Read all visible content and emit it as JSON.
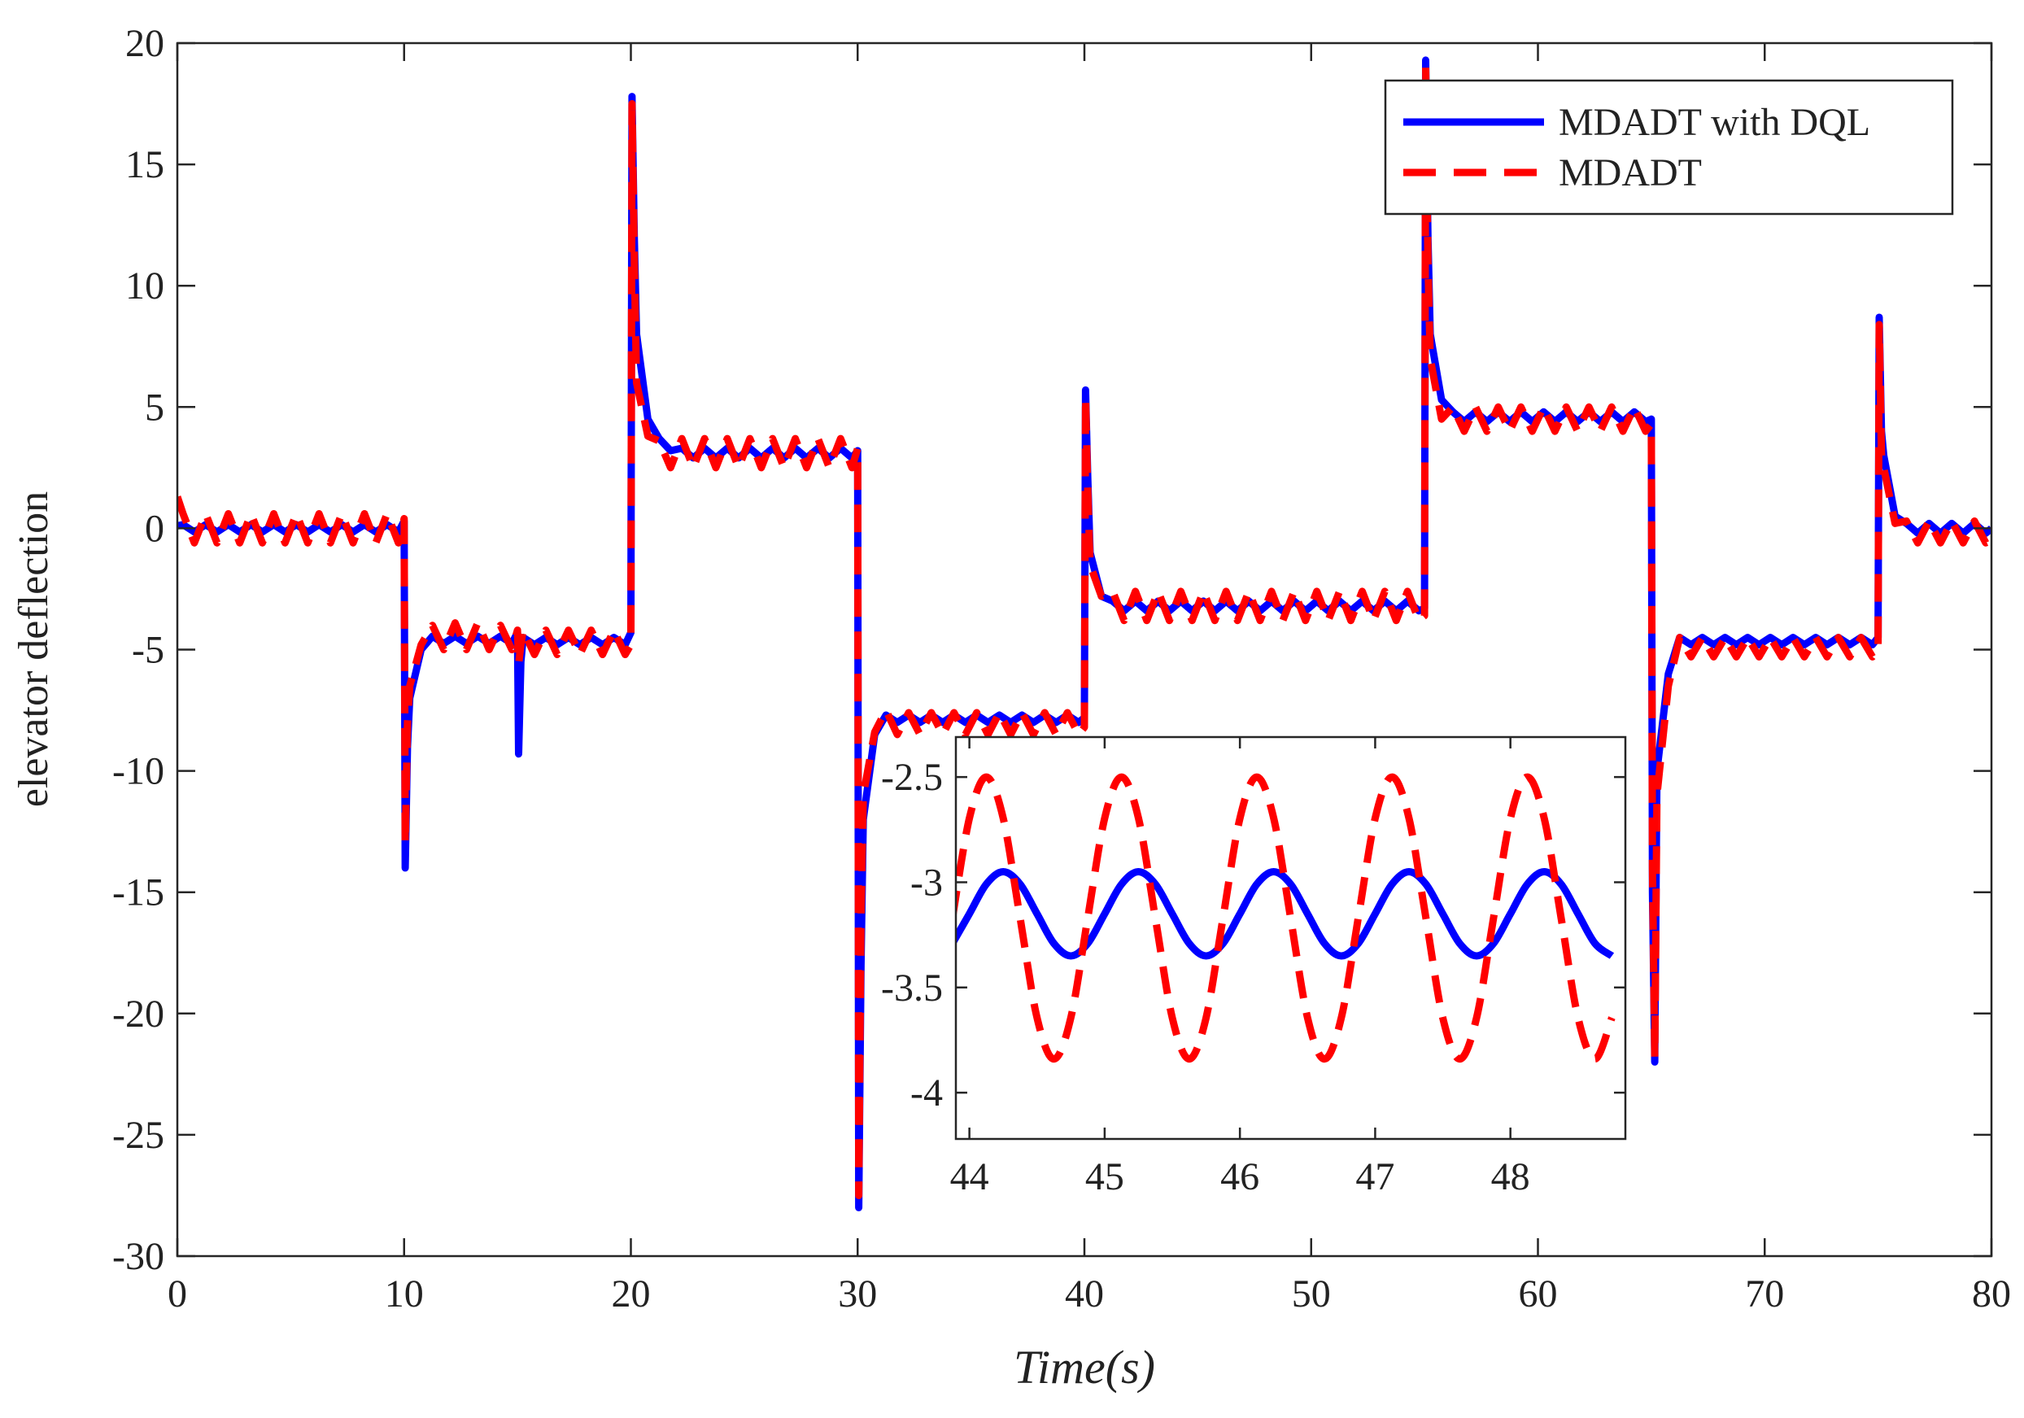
{
  "chart_data": [
    {
      "type": "line",
      "xlabel": "Time(s)",
      "ylabel": "elevator deflection",
      "xlim": [
        0,
        80
      ],
      "ylim": [
        -30,
        20
      ],
      "xticks": [
        0,
        10,
        20,
        30,
        40,
        50,
        60,
        70,
        80
      ],
      "yticks": [
        -30,
        -25,
        -20,
        -15,
        -10,
        -5,
        0,
        5,
        10,
        15,
        20
      ],
      "legend": "upper right",
      "x": [
        0,
        0.25,
        0.75,
        1.25,
        1.75,
        2.25,
        2.75,
        3.25,
        3.75,
        4.25,
        4.75,
        5.25,
        5.75,
        6.25,
        6.75,
        7.25,
        7.75,
        8.25,
        8.75,
        9.25,
        9.75,
        10,
        10.05,
        10.15,
        10.25,
        10.75,
        11.25,
        11.75,
        12.25,
        12.75,
        13.25,
        13.75,
        14.25,
        14.75,
        15,
        15.05,
        15.15,
        15.25,
        15.75,
        16.25,
        16.75,
        17.25,
        17.75,
        18.25,
        18.75,
        19.25,
        19.75,
        20,
        20.05,
        20.15,
        20.25,
        20.75,
        21.25,
        21.75,
        22.25,
        22.75,
        23.25,
        23.75,
        24.25,
        24.75,
        25.25,
        25.75,
        26.25,
        26.75,
        27.25,
        27.75,
        28.25,
        28.75,
        29.25,
        29.75,
        30,
        30.05,
        30.15,
        30.25,
        30.75,
        31.25,
        31.75,
        32.25,
        32.75,
        33.25,
        33.75,
        34.25,
        34.75,
        35.25,
        35.75,
        36.25,
        36.75,
        37.25,
        37.75,
        38.25,
        38.75,
        39.25,
        39.75,
        40,
        40.05,
        40.15,
        40.25,
        40.75,
        41.25,
        41.75,
        42.25,
        42.75,
        43.25,
        43.75,
        44.25,
        44.75,
        45.25,
        45.75,
        46.25,
        46.75,
        47.25,
        47.75,
        48.25,
        48.75,
        49.25,
        49.75,
        50.25,
        50.75,
        51.25,
        51.75,
        52.25,
        52.75,
        53.25,
        53.75,
        54.25,
        54.75,
        55,
        55.05,
        55.15,
        55.25,
        55.75,
        56.25,
        56.75,
        57.25,
        57.75,
        58.25,
        58.75,
        59.25,
        59.75,
        60.25,
        60.75,
        61.25,
        61.75,
        62.25,
        62.75,
        63.25,
        63.75,
        64.25,
        64.75,
        65,
        65.05,
        65.15,
        65.25,
        65.75,
        66.25,
        66.75,
        67.25,
        67.75,
        68.25,
        68.75,
        69.25,
        69.75,
        70.25,
        70.75,
        71.25,
        71.75,
        72.25,
        72.75,
        73.25,
        73.75,
        74.25,
        74.75,
        75,
        75.05,
        75.15,
        75.25,
        75.75,
        76.25,
        76.75,
        77.25,
        77.75,
        78.25,
        78.75,
        79.25,
        79.75,
        80
      ],
      "series": [
        {
          "name": "MDADT with DQL",
          "color": "#0000ff",
          "style": "solid",
          "values": [
            0.1,
            0.15,
            -0.15,
            0.15,
            -0.15,
            0.15,
            -0.15,
            0.15,
            -0.15,
            0.15,
            -0.15,
            0.15,
            -0.15,
            0.15,
            -0.15,
            0.15,
            -0.15,
            0.15,
            -0.15,
            0.15,
            -0.15,
            0.3,
            -14,
            -9,
            -7,
            -5,
            -4.45,
            -4.75,
            -4.45,
            -4.75,
            -4.45,
            -4.75,
            -4.45,
            -4.75,
            -4.3,
            -9.3,
            -5.5,
            -4.5,
            -4.8,
            -4.5,
            -4.8,
            -4.5,
            -4.8,
            -4.5,
            -4.8,
            -4.5,
            -4.8,
            -4.3,
            17.8,
            12,
            8,
            4.5,
            3.7,
            3.2,
            3.3,
            2.9,
            3.3,
            2.9,
            3.3,
            2.9,
            3.3,
            2.9,
            3.3,
            2.9,
            3.3,
            2.9,
            3.3,
            2.9,
            3.3,
            2.9,
            3.2,
            -28,
            -18,
            -12,
            -8.5,
            -7.7,
            -8.0,
            -7.7,
            -8.0,
            -7.7,
            -8.0,
            -7.7,
            -8.0,
            -7.7,
            -8.0,
            -7.7,
            -8.0,
            -7.7,
            -8.0,
            -7.7,
            -8.0,
            -7.7,
            -8.0,
            -7.8,
            5.7,
            2,
            -1,
            -2.8,
            -3.0,
            -3.4,
            -3.0,
            -3.4,
            -3.0,
            -3.4,
            -3.0,
            -3.4,
            -3.0,
            -3.4,
            -3.0,
            -3.4,
            -3.0,
            -3.4,
            -3.0,
            -3.4,
            -3.0,
            -3.4,
            -3.0,
            -3.4,
            -3.0,
            -3.4,
            -3.0,
            -3.4,
            -3.0,
            -3.4,
            -3.0,
            -3.4,
            -3.3,
            19.3,
            12,
            8,
            5.3,
            4.8,
            4.4,
            4.8,
            4.4,
            4.8,
            4.4,
            4.8,
            4.4,
            4.8,
            4.4,
            4.8,
            4.4,
            4.8,
            4.4,
            4.8,
            4.4,
            4.8,
            4.4,
            4.5,
            -15,
            -22,
            -10,
            -6,
            -4.5,
            -4.8,
            -4.5,
            -4.8,
            -4.5,
            -4.8,
            -4.5,
            -4.8,
            -4.5,
            -4.8,
            -4.5,
            -4.8,
            -4.5,
            -4.8,
            -4.5,
            -4.8,
            -4.5,
            -4.8,
            -4.5,
            8.7,
            4,
            3,
            0.5,
            0.2,
            -0.2,
            0.2,
            -0.2,
            0.2,
            -0.2,
            0.2,
            -0.2,
            0
          ]
        },
        {
          "name": "MDADT",
          "color": "#ff0000",
          "style": "dashed",
          "values": [
            1.3,
            0.6,
            -0.6,
            0.6,
            -0.6,
            0.6,
            -0.6,
            0.6,
            -0.6,
            0.6,
            -0.6,
            0.6,
            -0.6,
            0.6,
            -0.6,
            0.6,
            -0.6,
            0.6,
            -0.6,
            0.6,
            -0.6,
            0.4,
            -13,
            -8,
            -6.5,
            -4.8,
            -4.0,
            -5.0,
            -3.9,
            -5.0,
            -3.9,
            -5.0,
            -4.0,
            -5.0,
            -4.2,
            -5.6,
            -4.8,
            -4.2,
            -5.2,
            -4.2,
            -5.2,
            -4.2,
            -5.2,
            -4.2,
            -5.2,
            -4.2,
            -5.2,
            -4.8,
            17.5,
            11,
            6,
            3.8,
            3.6,
            2.5,
            3.7,
            2.5,
            3.7,
            2.5,
            3.7,
            2.5,
            3.7,
            2.5,
            3.7,
            2.5,
            3.7,
            2.5,
            3.7,
            2.5,
            3.7,
            2.5,
            3.3,
            -27.5,
            -16,
            -11,
            -8.4,
            -7.5,
            -8.5,
            -7.6,
            -8.5,
            -7.6,
            -8.5,
            -7.6,
            -8.5,
            -7.6,
            -8.5,
            -7.6,
            -8.5,
            -7.6,
            -8.5,
            -7.6,
            -8.5,
            -7.6,
            -8.5,
            -8.2,
            5.4,
            1.5,
            -1.5,
            -2.8,
            -2.6,
            -3.8,
            -2.6,
            -3.8,
            -2.6,
            -3.8,
            -2.6,
            -3.8,
            -2.6,
            -3.8,
            -2.6,
            -3.8,
            -2.6,
            -3.8,
            -2.6,
            -3.8,
            -2.6,
            -3.8,
            -2.6,
            -3.8,
            -2.6,
            -3.8,
            -2.6,
            -3.8,
            -2.6,
            -3.8,
            -2.6,
            -3.8,
            -3.6,
            19.0,
            11,
            7,
            4.5,
            5.0,
            4.0,
            5.0,
            4.0,
            5.0,
            4.0,
            5.0,
            4.0,
            5.0,
            4.0,
            5.0,
            4.0,
            5.0,
            4.0,
            5.0,
            4.0,
            5.0,
            4.0,
            4.3,
            -14,
            -21.8,
            -11,
            -6.5,
            -4.5,
            -5.3,
            -4.5,
            -5.3,
            -4.5,
            -5.3,
            -4.5,
            -5.3,
            -4.5,
            -5.3,
            -4.5,
            -5.3,
            -4.5,
            -5.3,
            -4.5,
            -5.3,
            -4.5,
            -5.3,
            -5,
            8.4,
            3,
            2.5,
            0.2,
            0.3,
            -0.6,
            0.3,
            -0.6,
            0.3,
            -0.6,
            0.3,
            -0.6,
            -0.5
          ]
        }
      ]
    },
    {
      "type": "line",
      "xlim": [
        43.9,
        48.85
      ],
      "ylim": [
        -4.22,
        -2.31
      ],
      "xticks": [
        44,
        45,
        46,
        47,
        48
      ],
      "yticks": [
        -4,
        -3.5,
        -3,
        -2.5
      ],
      "x": [
        43.875,
        44,
        44.125,
        44.25,
        44.375,
        44.5,
        44.625,
        44.75,
        44.875,
        45,
        45.125,
        45.25,
        45.375,
        45.5,
        45.625,
        45.75,
        45.875,
        46,
        46.125,
        46.25,
        46.375,
        46.5,
        46.625,
        46.75,
        46.875,
        47,
        47.125,
        47.25,
        47.375,
        47.5,
        47.625,
        47.75,
        47.875,
        48,
        48.125,
        48.25,
        48.375,
        48.5,
        48.625,
        48.75
      ],
      "series": [
        {
          "color": "#0000ff",
          "style": "solid",
          "values": [
            -3.291,
            -3.15,
            -3.009,
            -2.95,
            -3.009,
            -3.15,
            -3.291,
            -3.35,
            -3.291,
            -3.15,
            -3.009,
            -2.95,
            -3.009,
            -3.15,
            -3.291,
            -3.35,
            -3.291,
            -3.15,
            -3.009,
            -2.95,
            -3.009,
            -3.15,
            -3.291,
            -3.35,
            -3.291,
            -3.15,
            -3.009,
            -2.95,
            -3.009,
            -3.15,
            -3.291,
            -3.35,
            -3.291,
            -3.15,
            -3.009,
            -2.95,
            -3.009,
            -3.15,
            -3.291,
            -3.35
          ]
        },
        {
          "color": "#ff0000",
          "style": "dashed",
          "values": [
            -3.17,
            -2.696,
            -2.5,
            -2.696,
            -3.17,
            -3.644,
            -3.84,
            -3.644,
            -3.17,
            -2.696,
            -2.5,
            -2.696,
            -3.17,
            -3.644,
            -3.84,
            -3.644,
            -3.17,
            -2.696,
            -2.5,
            -2.696,
            -3.17,
            -3.644,
            -3.84,
            -3.644,
            -3.17,
            -2.696,
            -2.5,
            -2.696,
            -3.17,
            -3.644,
            -3.84,
            -3.644,
            -3.17,
            -2.696,
            -2.5,
            -2.696,
            -3.17,
            -3.644,
            -3.84,
            -3.644
          ]
        }
      ]
    }
  ]
}
